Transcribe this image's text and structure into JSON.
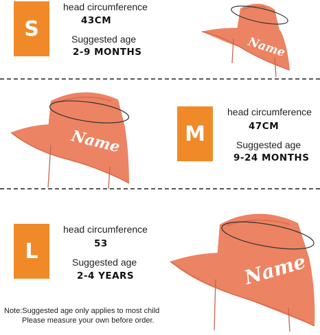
{
  "sizes": [
    {
      "letter": "S",
      "circ_label": "head circumference",
      "circ_value": "43CM",
      "age_label": "Suggested age",
      "age_value": "2-9 MONTHS"
    },
    {
      "letter": "M",
      "circ_label": "head circumference",
      "circ_value": "47CM",
      "age_label": "Suggested age",
      "age_value": "9-24 MONTHS"
    },
    {
      "letter": "L",
      "circ_label": "head circumference",
      "circ_value": "53",
      "age_label": "Suggested age",
      "age_value": "2-4 YEARS"
    }
  ],
  "hat_text": "Name",
  "note": {
    "line1": "Note:Suggested age only applies to most child",
    "line2": "Please measure your own before order."
  },
  "colors": {
    "badge": "#f08a28",
    "hat": "#ec8363",
    "hat_shadow": "#d96b4e",
    "hat_inner": "#f3a282"
  }
}
